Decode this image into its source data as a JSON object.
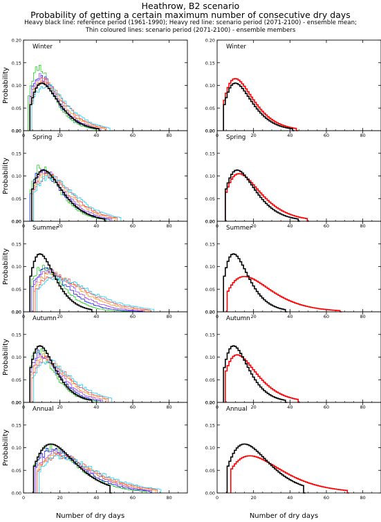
{
  "header": {
    "title": "Heathrow, B2 scenario",
    "subtitle": "Probability of getting a certain maximum number of consecutive dry days",
    "legend_line1": "Heavy black line: reference period (1961-1990); Heavy red line: scenario period (2071-2100) - ensemble mean;",
    "legend_line2": "Thin coloured lines: scenario period (2071-2100) - ensemble members"
  },
  "colors": {
    "reference": "#000000",
    "ensemble_mean": "#ff0000",
    "members": [
      "#00cc00",
      "#0000ff",
      "#9b30ff",
      "#ff8c00",
      "#ff3333",
      "#00ccff",
      "#996633"
    ]
  },
  "chart_data": {
    "type": "line",
    "xlabel": "Number of dry days",
    "ylabel": "Probability",
    "xlim": [
      0,
      90
    ],
    "ylim": [
      0,
      0.2
    ],
    "xticks": [
      "0",
      "20",
      "40",
      "60",
      "80"
    ],
    "yticks": [
      "0.00",
      "0.05",
      "0.10",
      "0.15",
      "0.20"
    ],
    "panels": [
      {
        "label": "Winter",
        "reference": {
          "peak_x": 10,
          "peak_y": 0.105,
          "end_x": 42
        },
        "ensemble_mean": {
          "peak_x": 10,
          "peak_y": 0.115,
          "end_x": 44
        },
        "member_peaks": [
          0.14,
          0.122,
          0.118,
          0.112,
          0.108,
          0.1
        ]
      },
      {
        "label": "Spring",
        "reference": {
          "peak_x": 11,
          "peak_y": 0.113,
          "end_x": 45
        },
        "ensemble_mean": {
          "peak_x": 12,
          "peak_y": 0.105,
          "end_x": 50
        },
        "member_peaks": [
          0.12,
          0.112,
          0.108,
          0.105,
          0.1,
          0.098
        ]
      },
      {
        "label": "Summer",
        "reference": {
          "peak_x": 9,
          "peak_y": 0.128,
          "end_x": 38
        },
        "ensemble_mean": {
          "peak_x": 15,
          "peak_y": 0.078,
          "end_x": 68
        },
        "member_peaks": [
          0.098,
          0.092,
          0.088,
          0.085,
          0.08,
          0.075
        ]
      },
      {
        "label": "Autumn",
        "reference": {
          "peak_x": 9,
          "peak_y": 0.125,
          "end_x": 38
        },
        "ensemble_mean": {
          "peak_x": 11,
          "peak_y": 0.105,
          "end_x": 45
        },
        "member_peaks": [
          0.115,
          0.11,
          0.105,
          0.1,
          0.095,
          0.09
        ]
      },
      {
        "label": "Annual",
        "reference": {
          "peak_x": 15,
          "peak_y": 0.108,
          "end_x": 48
        },
        "ensemble_mean": {
          "peak_x": 18,
          "peak_y": 0.082,
          "end_x": 72
        },
        "member_peaks": [
          0.1,
          0.095,
          0.09,
          0.085,
          0.082,
          0.078
        ]
      }
    ]
  }
}
